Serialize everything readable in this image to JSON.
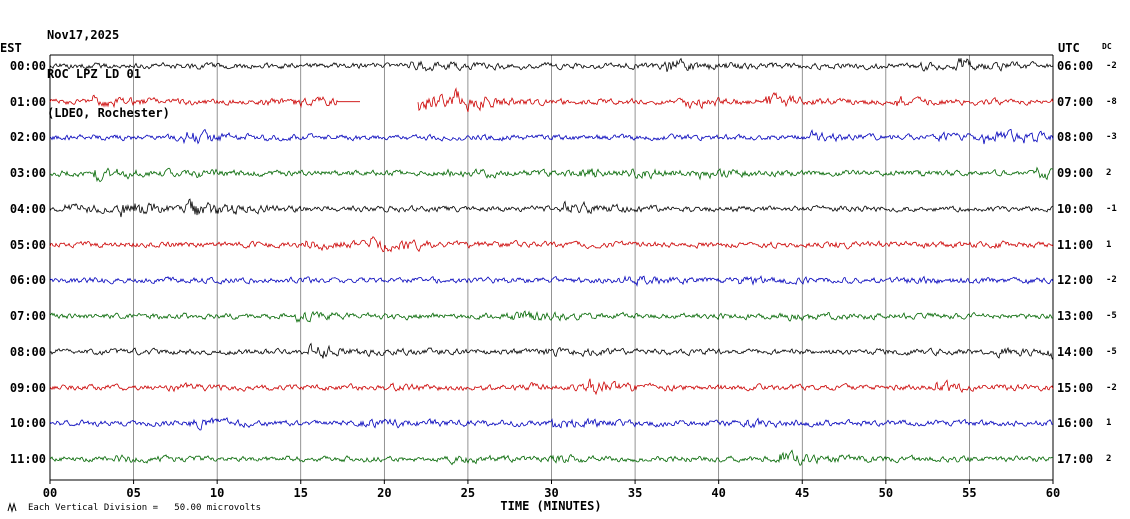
{
  "header": {
    "date": "Nov17,2025",
    "station": "ROC LPZ LD 01",
    "network": "(LDEO, Rochester)"
  },
  "axes": {
    "left_tz_label": "EST",
    "right_tz_label": "UTC",
    "dc_label": "DC",
    "x_title": "TIME (MINUTES)",
    "x_ticks": [
      "00",
      "05",
      "10",
      "15",
      "20",
      "25",
      "30",
      "35",
      "40",
      "45",
      "50",
      "55",
      "60"
    ]
  },
  "footer": {
    "scale_note": "Each Vertical Division =   50.00 microvolts"
  },
  "colors": {
    "black_trace": "#000000",
    "red_trace": "#cc0000",
    "blue_trace": "#0000bb",
    "green_trace": "#006600",
    "grid": "#666666",
    "border": "#000000"
  },
  "chart_data": {
    "type": "line",
    "kind": "helicorder-seismogram",
    "title": "ROC LPZ LD 01 (LDEO, Rochester) Nov17,2025",
    "xlabel": "TIME (MINUTES)",
    "x_range_minutes": [
      0,
      60
    ],
    "grid_interval_minutes": 5,
    "minutes_per_row": 60,
    "vertical_division_microvolts": 50.0,
    "trace_description": "continuous ambient seismic noise, ~0.2-0.5 division peak amplitude with intermittent small bursts; no large events",
    "rows": [
      {
        "est": "00:00",
        "utc": "06:00",
        "dc": "-2",
        "color": "#000000"
      },
      {
        "est": "01:00",
        "utc": "07:00",
        "dc": "-8",
        "color": "#cc0000",
        "flat_minutes": [
          17.2,
          18.6
        ],
        "gap_minutes": [
          18.6,
          22.0
        ],
        "burst_after_gap": true
      },
      {
        "est": "02:00",
        "utc": "08:00",
        "dc": "-3",
        "color": "#0000bb"
      },
      {
        "est": "03:00",
        "utc": "09:00",
        "dc": "2",
        "color": "#006600"
      },
      {
        "est": "04:00",
        "utc": "10:00",
        "dc": "-1",
        "color": "#000000"
      },
      {
        "est": "05:00",
        "utc": "11:00",
        "dc": "1",
        "color": "#cc0000"
      },
      {
        "est": "06:00",
        "utc": "12:00",
        "dc": "-2",
        "color": "#0000bb"
      },
      {
        "est": "07:00",
        "utc": "13:00",
        "dc": "-5",
        "color": "#006600"
      },
      {
        "est": "08:00",
        "utc": "14:00",
        "dc": "-5",
        "color": "#000000"
      },
      {
        "est": "09:00",
        "utc": "15:00",
        "dc": "-2",
        "color": "#cc0000"
      },
      {
        "est": "10:00",
        "utc": "16:00",
        "dc": "1",
        "color": "#0000bb"
      },
      {
        "est": "11:00",
        "utc": "17:00",
        "dc": "2",
        "color": "#006600"
      }
    ]
  }
}
